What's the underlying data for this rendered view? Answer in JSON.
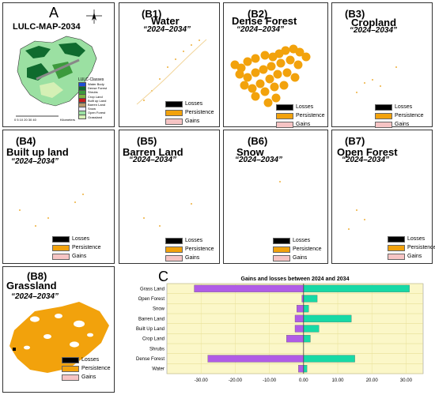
{
  "panels": {
    "A": {
      "letter": "A",
      "title": "LULC-MAP-2034",
      "legend_title": "LULC-Classes",
      "legend_items": [
        "Water Body",
        "Dense Forest",
        "Shrubs",
        "Crop Land",
        "Built up Land",
        "Barren Land",
        "Snow",
        "Open Forest",
        "Grassland"
      ],
      "legend_colors": [
        "#1f4fd6",
        "#0f6b2e",
        "#3c9a3c",
        "#7fb341",
        "#c61d1d",
        "#b79a6c",
        "#e8e8f6",
        "#9be0a2",
        "#d5f0b5"
      ],
      "scale_text": "0  5  10  20  30  40",
      "scale_unit": "Kilometers"
    },
    "B1": {
      "code": "(B1)",
      "name": "Water",
      "period": "“2024–2034”"
    },
    "B2": {
      "code": "(B2)",
      "name": "Dense Forest",
      "period": "“2024–2034”"
    },
    "B3": {
      "code": "(B3)",
      "name": "Cropland",
      "period": "“2024–2034”"
    },
    "B4": {
      "code": "(B4)",
      "name": "Built up land",
      "period": "“2024–2034”"
    },
    "B5": {
      "code": "(B5)",
      "name": "Barren Land",
      "period": "“2024–2034”"
    },
    "B6": {
      "code": "(B6)",
      "name": "Snow",
      "period": "“2024–2034”"
    },
    "B7": {
      "code": "(B7)",
      "name": "Open Forest",
      "period": "“2024–2034”"
    },
    "B8": {
      "code": "(B8)",
      "name": "Grassland",
      "period": "“2024–2034”"
    }
  },
  "legend_b": {
    "losses": "Losses",
    "persistence": "Persistence",
    "gains": "Gains",
    "colors": {
      "losses": "#000000",
      "persistence": "#f2a20c",
      "gains": "#f6c4c4"
    }
  },
  "panel_c_letter": "C",
  "chart_data": {
    "type": "bar",
    "orientation": "horizontal",
    "title": "Gains and losses between 2024 and 2034",
    "categories": [
      "Grass Land",
      "Open Forest",
      "Snow",
      "Barren Land",
      "Built Up Land",
      "Crop Land",
      "Shrubs",
      "Dense Forest",
      "Water"
    ],
    "series": [
      {
        "values": [
          -32.0,
          -0.5,
          -2.0,
          -2.5,
          -2.5,
          -5.0,
          0.0,
          -28.0,
          -1.5
        ],
        "color": "#b05ce6"
      },
      {
        "values": [
          31.0,
          4.0,
          1.5,
          14.0,
          4.5,
          2.0,
          0.0,
          15.0,
          1.0
        ],
        "color": "#17d9a6"
      }
    ],
    "xlim": [
      -40,
      35
    ],
    "xticks": [
      "-30.00",
      "-20.00",
      "-10.00",
      "0.00",
      "10.00",
      "20.00",
      "30.00"
    ],
    "xtick_values": [
      -30,
      -20,
      -10,
      0,
      10,
      20,
      30
    ],
    "grid": true
  }
}
